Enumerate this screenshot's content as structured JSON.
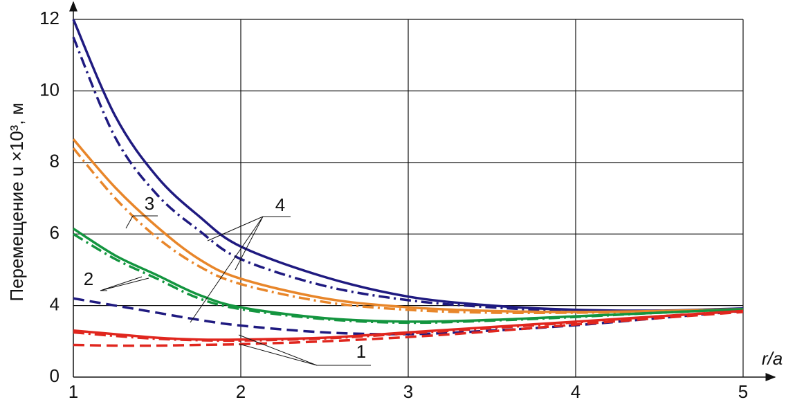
{
  "chart_data": {
    "type": "line",
    "x_label": "r/a",
    "y_label": "Перемещение u ×10³, м",
    "y_origin_label": "0",
    "x": [
      1,
      1.25,
      1.5,
      1.75,
      2,
      2.5,
      3,
      3.5,
      4,
      4.5,
      5
    ],
    "xlim": [
      1,
      5
    ],
    "xticks": [
      1,
      2,
      3,
      4,
      5
    ],
    "ylim": [
      2,
      12
    ],
    "yticks": [
      4,
      6,
      8,
      10,
      12
    ],
    "grid": true,
    "series": [
      {
        "color": "#1f1a80",
        "dash": "solid",
        "values": [
          12,
          9.3,
          7.6,
          6.5,
          5.65,
          4.8,
          4.25,
          4.0,
          3.88,
          3.86,
          3.92
        ]
      },
      {
        "color": "#1f1a80",
        "dash": "dashdot",
        "values": [
          11.5,
          8.7,
          7.1,
          6.1,
          5.3,
          4.55,
          4.15,
          3.95,
          3.85,
          3.85,
          3.9
        ]
      },
      {
        "color": "#1f1a80",
        "dash": "dashed",
        "values": [
          4.2,
          4.0,
          3.8,
          3.6,
          3.44,
          3.25,
          3.2,
          3.3,
          3.45,
          3.65,
          3.85
        ]
      },
      {
        "color": "#e8862a",
        "dash": "solid",
        "values": [
          8.65,
          7.3,
          6.2,
          5.3,
          4.75,
          4.2,
          3.95,
          3.85,
          3.82,
          3.85,
          3.9
        ]
      },
      {
        "color": "#e8862a",
        "dash": "dashdot",
        "values": [
          8.4,
          7.0,
          5.9,
          5.1,
          4.6,
          4.1,
          3.88,
          3.8,
          3.8,
          3.83,
          3.88
        ]
      },
      {
        "color": "#13953f",
        "dash": "solid",
        "values": [
          6.15,
          5.4,
          4.85,
          4.3,
          3.95,
          3.65,
          3.55,
          3.6,
          3.7,
          3.8,
          3.9
        ]
      },
      {
        "color": "#13953f",
        "dash": "dashdot",
        "values": [
          6.0,
          5.3,
          4.75,
          4.2,
          3.9,
          3.62,
          3.52,
          3.58,
          3.68,
          3.8,
          3.9
        ]
      },
      {
        "color": "#e0261e",
        "dash": "solid",
        "values": [
          3.3,
          3.2,
          3.1,
          3.05,
          3.05,
          3.1,
          3.25,
          3.4,
          3.55,
          3.7,
          3.85
        ]
      },
      {
        "color": "#e0261e",
        "dash": "dashdot",
        "values": [
          3.25,
          3.15,
          3.07,
          3.03,
          3.02,
          3.08,
          3.22,
          3.37,
          3.53,
          3.7,
          3.85
        ]
      },
      {
        "color": "#e0261e",
        "dash": "dashed",
        "values": [
          2.9,
          2.88,
          2.88,
          2.9,
          2.92,
          3.0,
          3.12,
          3.28,
          3.47,
          3.65,
          3.82
        ]
      }
    ],
    "annotations": [
      "1",
      "2",
      "3",
      "4"
    ]
  }
}
